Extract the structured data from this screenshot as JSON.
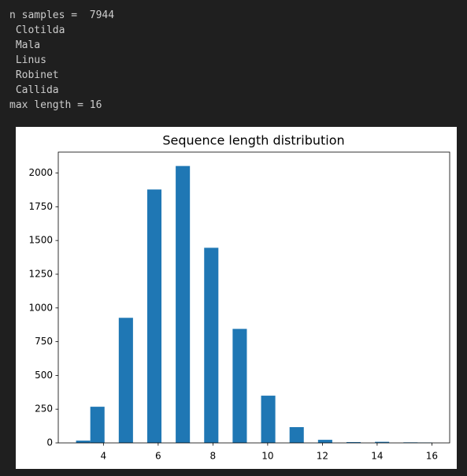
{
  "output_lines": [
    "n samples =  7944",
    " Clotilda",
    " Mala",
    " Linus",
    " Robinet",
    " Callida",
    "max length = 16"
  ],
  "chart_data": {
    "type": "histogram",
    "title": "Sequence length distribution",
    "bins": [
      3,
      3.52,
      4.04,
      4.56,
      5.08,
      5.6,
      6.12,
      6.64,
      7.16,
      7.68,
      8.2,
      8.72,
      9.24,
      9.76,
      10.28,
      10.8,
      11.32,
      11.84,
      12.36,
      12.88,
      13.4,
      13.92,
      14.44,
      14.96,
      15.48,
      16
    ],
    "counts": [
      17,
      268,
      0,
      927,
      0,
      1878,
      0,
      2052,
      0,
      1446,
      0,
      845,
      0,
      350,
      0,
      117,
      0,
      23,
      0,
      6,
      0,
      8,
      0,
      4,
      3
    ],
    "color": "#1f77b4",
    "xlim": [
      2.35,
      16.65
    ],
    "xticks": [
      4,
      6,
      8,
      10,
      12,
      14,
      16
    ],
    "ylim": [
      0,
      2155
    ],
    "yticks": [
      0,
      250,
      500,
      750,
      1000,
      1250,
      1500,
      1750,
      2000
    ]
  }
}
